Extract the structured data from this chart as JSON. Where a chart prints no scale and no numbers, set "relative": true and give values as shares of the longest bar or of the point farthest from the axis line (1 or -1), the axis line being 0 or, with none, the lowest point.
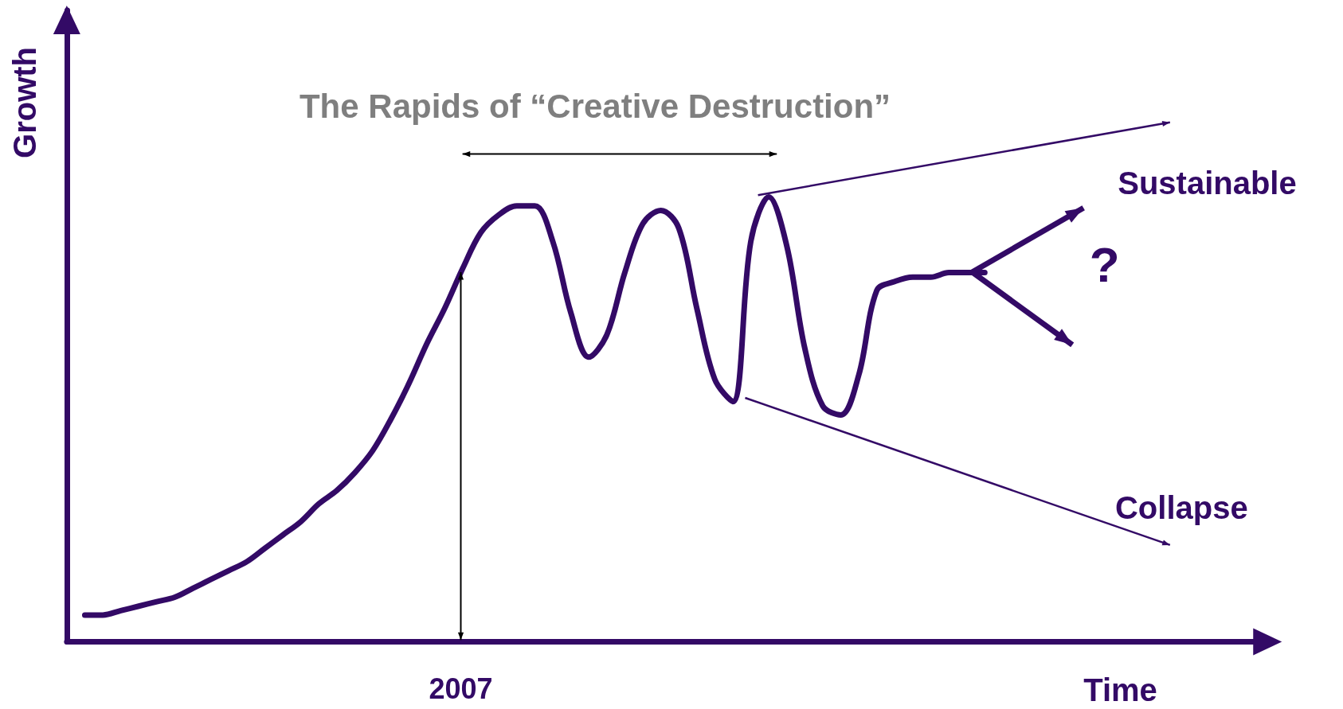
{
  "chart_data": {
    "type": "line",
    "relative": true,
    "title": "The Rapids of “Creative Destruction”",
    "xlabel": "Time",
    "ylabel": "Growth",
    "categories": [
      null,
      null,
      null,
      null,
      null,
      null,
      null,
      null,
      null,
      null,
      null,
      null,
      null,
      null,
      null,
      null,
      null,
      null,
      null,
      null,
      null,
      null,
      null,
      null,
      null,
      null,
      null,
      null,
      null,
      null,
      null,
      null,
      null,
      null,
      null,
      null,
      null,
      null,
      null,
      null,
      null,
      null,
      null,
      null,
      null,
      null,
      null,
      null,
      null,
      null,
      null,
      null,
      null,
      null,
      null,
      null,
      null,
      null,
      null,
      null,
      null,
      null,
      null,
      null,
      null,
      null,
      null
    ],
    "series": [
      {
        "color": "#330a66",
        "values": [
          null,
          0.06,
          0.06,
          0.07,
          0.08,
          0.09,
          0.1,
          0.12,
          0.14,
          0.16,
          0.18,
          0.21,
          0.24,
          0.27,
          0.31,
          0.34,
          0.38,
          0.43,
          0.5,
          0.58,
          0.67,
          0.75,
          0.84,
          0.92,
          0.96,
          0.98,
          0.98,
          0.9,
          0.74,
          0.64,
          0.69,
          0.83,
          0.94,
          0.97,
          0.93,
          0.75,
          0.59,
          0.54,
          0.9,
          1,
          0.89,
          0.66,
          0.53,
          0.51,
          0.6,
          0.79,
          0.81,
          0.82,
          0.82,
          0.83,
          0.83,
          0.83,
          null,
          null,
          null,
          null,
          null,
          null,
          null,
          null,
          null,
          null,
          null,
          null,
          null,
          null,
          null
        ]
      }
    ],
    "annotations": [
      "Sustainable",
      "?",
      "Collapse",
      "2007"
    ],
    "grid": false,
    "marker": "none",
    "line_style": "solid"
  }
}
